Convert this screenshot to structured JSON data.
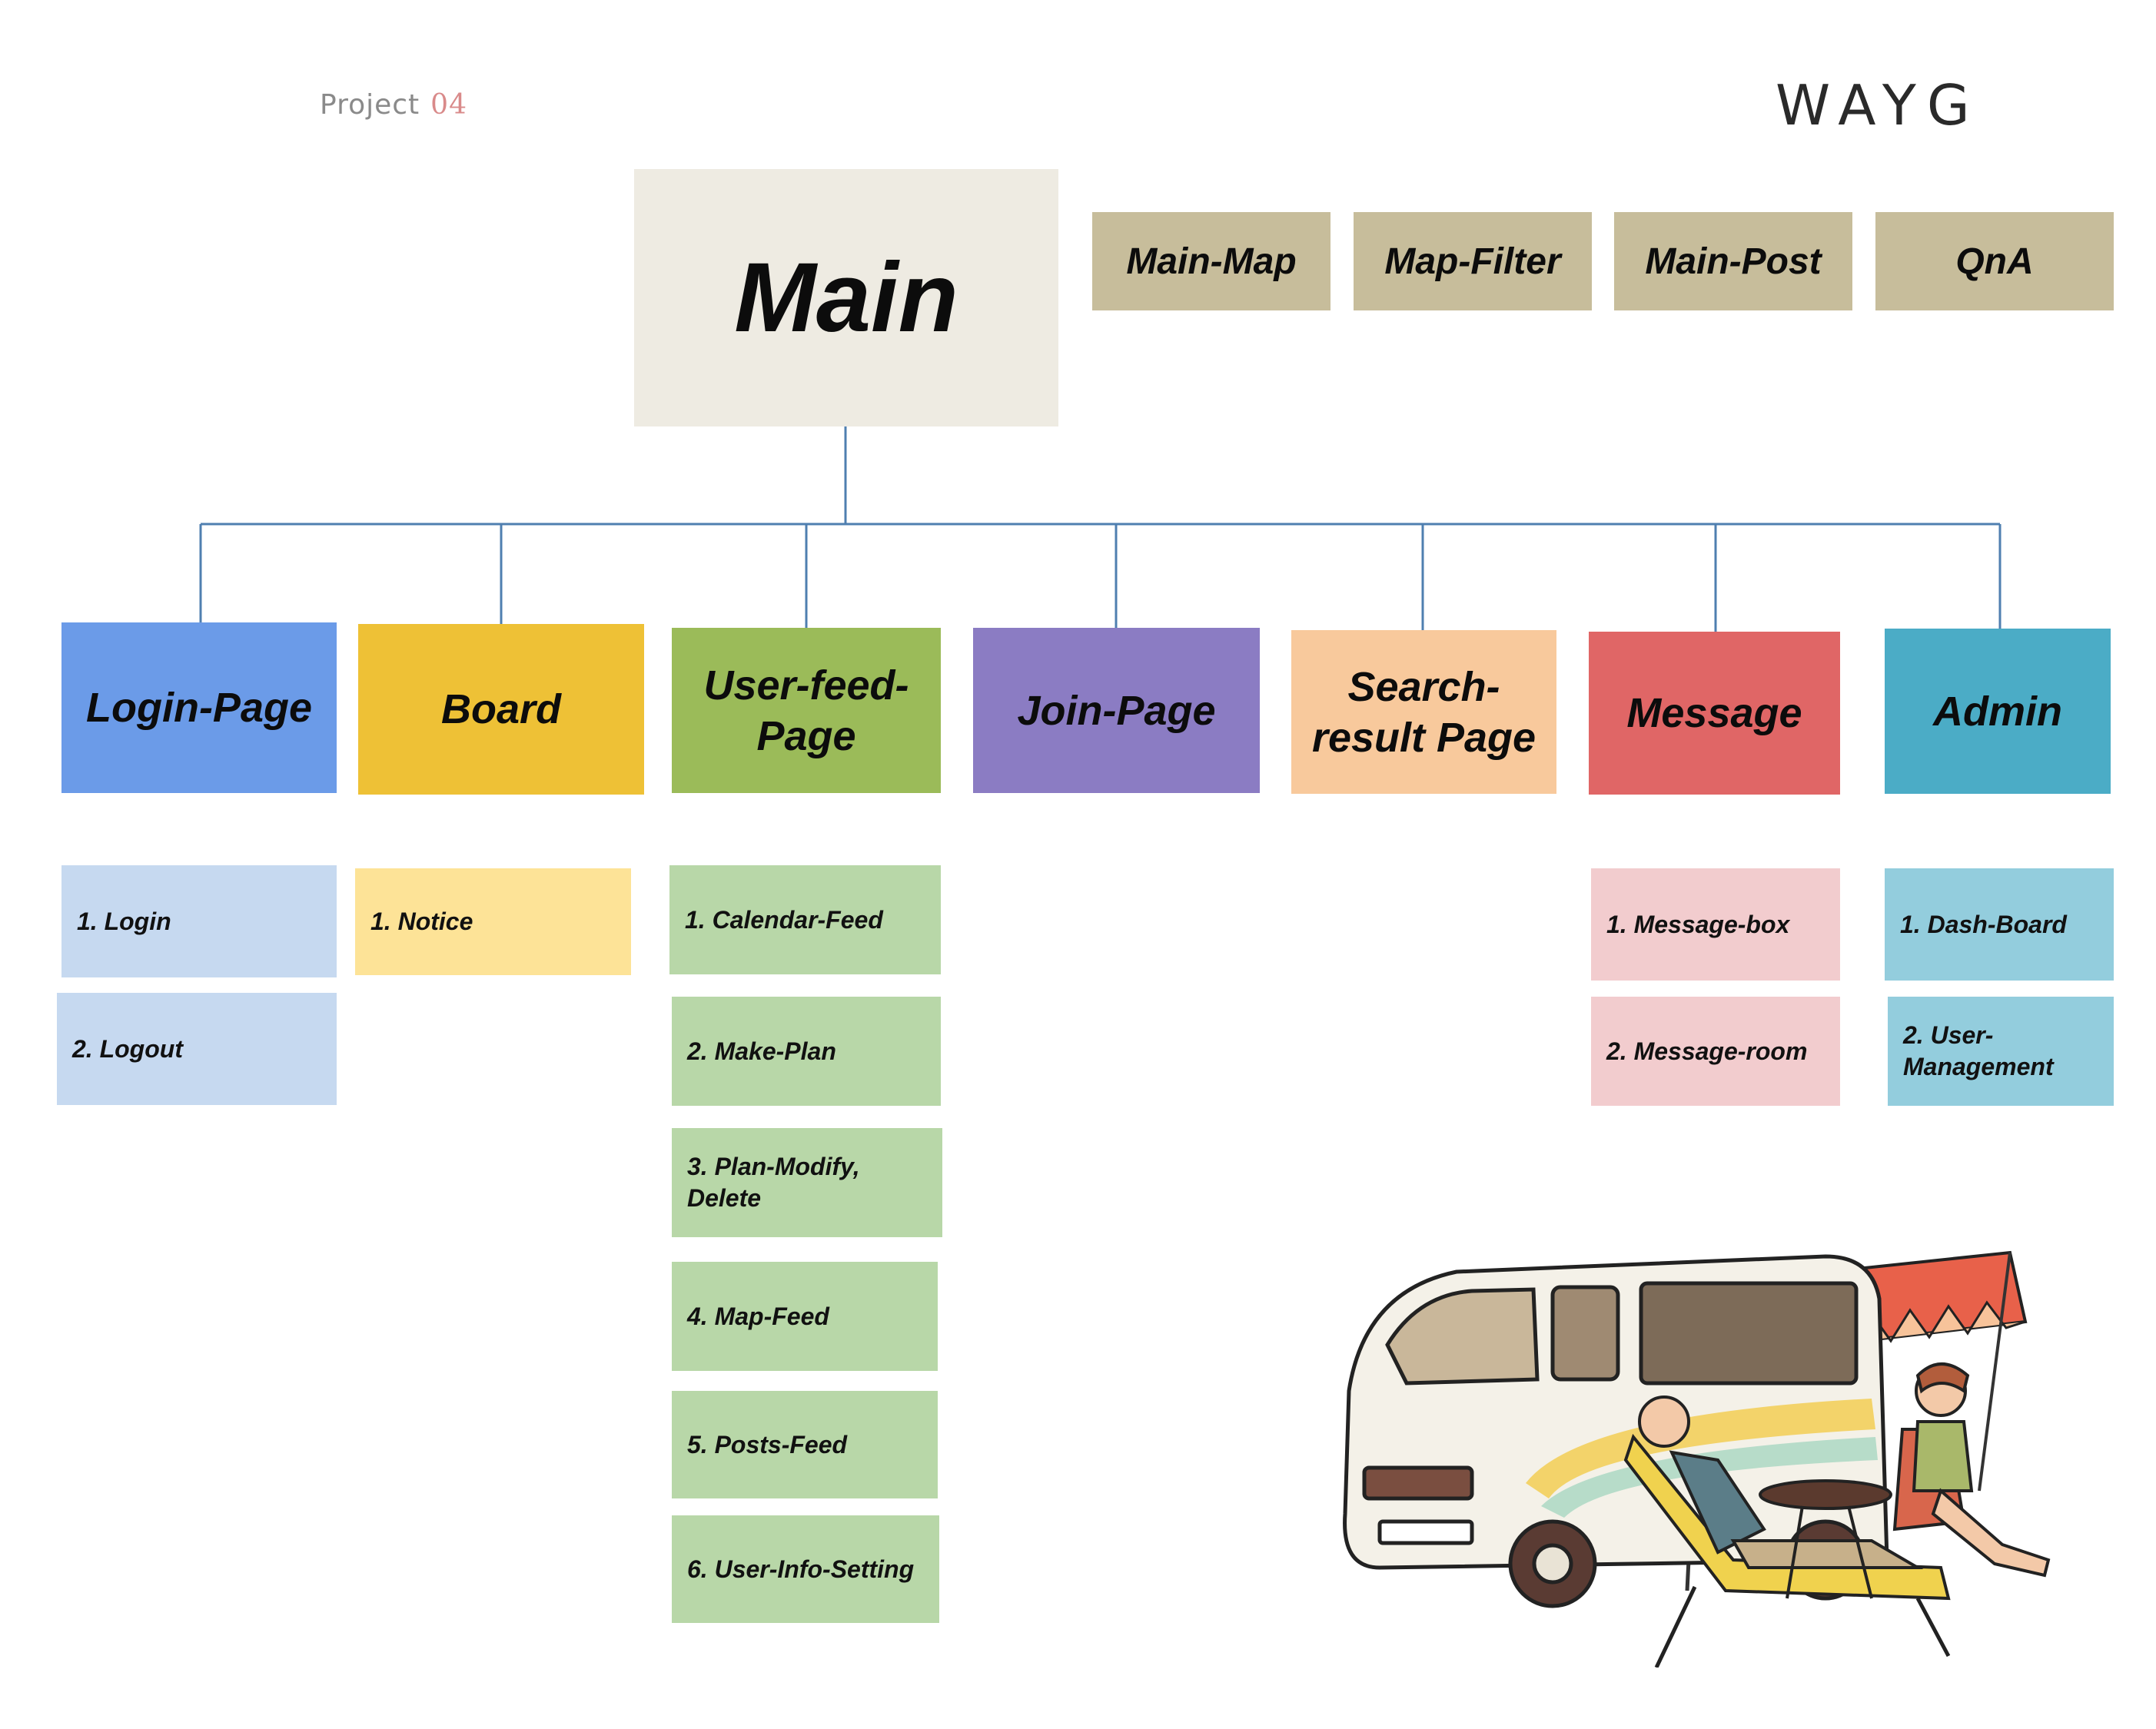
{
  "header": {
    "project_label": "Project",
    "project_number": "04",
    "brand": "WAYG"
  },
  "main": {
    "label": "Main",
    "color": "#eeebe2",
    "features": [
      "Main-Map",
      "Map-Filter",
      "Main-Post",
      "QnA"
    ],
    "feature_color": "#c7bd9b"
  },
  "sections": [
    {
      "label": "Login-Page",
      "color": "#6b9be8",
      "sub_color": "#c6d9f0",
      "items": [
        "1. Login",
        "2. Logout"
      ]
    },
    {
      "label": "Board",
      "color": "#eec136",
      "sub_color": "#fde397",
      "items": [
        "1. Notice"
      ]
    },
    {
      "label": "User-feed-Page",
      "color": "#9bbb59",
      "sub_color": "#b8d7a8",
      "items": [
        "1. Calendar-Feed",
        "2. Make-Plan",
        "3. Plan-Modify, Delete",
        "4. Map-Feed",
        "5. Posts-Feed",
        "6. User-Info-Setting"
      ]
    },
    {
      "label": "Join-Page",
      "color": "#8b7cc3",
      "sub_color": "#d9d2ee",
      "items": []
    },
    {
      "label": "Search-result Page",
      "color": "#f8c99c",
      "sub_color": "#fde6d0",
      "items": []
    },
    {
      "label": "Message",
      "color": "#e06666",
      "sub_color": "#f2ccce",
      "items": [
        "1. Message-box",
        "2. Message-room"
      ]
    },
    {
      "label": "Admin",
      "color": "#4bacc6",
      "sub_color": "#93cddd",
      "items": [
        "1. Dash-Board",
        "2. User-Management"
      ]
    }
  ]
}
